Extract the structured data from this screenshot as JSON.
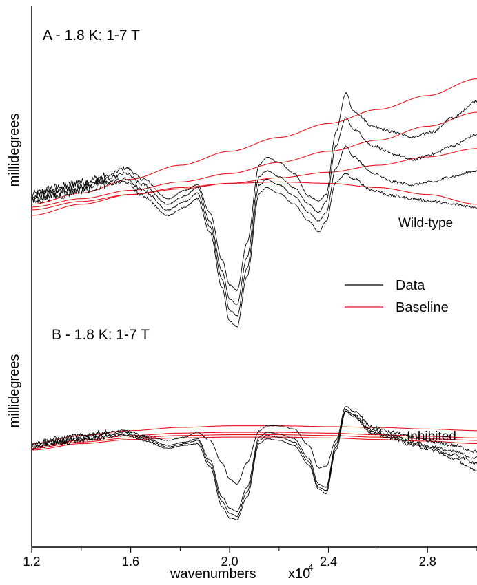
{
  "chart_data": {
    "type": "line",
    "xlabel": "wavenumbers",
    "x_multiplier_label": "x10",
    "x_multiplier_exponent": "4",
    "xlim": [
      1.2,
      3.0
    ],
    "xticks": [
      1.2,
      1.6,
      2.0,
      2.4,
      2.8
    ],
    "xtick_labels": [
      "1.2",
      "1.6",
      "2.0",
      "2.4",
      "2.8"
    ],
    "legend": {
      "position": "center-right",
      "entries": [
        {
          "label": "Data",
          "color": "#000000"
        },
        {
          "label": "Baseline",
          "color": "#e8141d"
        }
      ]
    },
    "panels": [
      {
        "title": "A - 1.8 K: 1-7 T",
        "ylabel": "millidegrees",
        "annotation": "Wild-type",
        "ylim": [
          -100,
          100
        ],
        "yticks": false,
        "data_series": [
          {
            "x": [
              1.2,
              1.3,
              1.4,
              1.5,
              1.58,
              1.65,
              1.75,
              1.82,
              1.87,
              1.92,
              1.97,
              2.0,
              2.03,
              2.07,
              2.12,
              2.15,
              2.2,
              2.26,
              2.32,
              2.36,
              2.39,
              2.43,
              2.47,
              2.5,
              2.58,
              2.66,
              2.74,
              2.82,
              2.9,
              3.0
            ],
            "y": [
              -5,
              0,
              4,
              8,
              14,
              6,
              -8,
              -2,
              2,
              -18,
              -52,
              -70,
              -74,
              -40,
              16,
              22,
              18,
              10,
              -6,
              -10,
              -5,
              40,
              68,
              55,
              44,
              40,
              36,
              40,
              50,
              62
            ]
          },
          {
            "x": [
              1.2,
              1.3,
              1.4,
              1.5,
              1.58,
              1.65,
              1.75,
              1.82,
              1.87,
              1.92,
              1.97,
              2.0,
              2.03,
              2.07,
              2.12,
              2.15,
              2.2,
              2.26,
              2.32,
              2.36,
              2.39,
              2.43,
              2.47,
              2.5,
              2.58,
              2.66,
              2.74,
              2.82,
              2.9,
              3.0
            ],
            "y": [
              -6,
              -2,
              2,
              6,
              10,
              2,
              -12,
              -6,
              0,
              -24,
              -60,
              -80,
              -84,
              -50,
              8,
              12,
              8,
              0,
              -12,
              -18,
              -10,
              30,
              50,
              42,
              30,
              24,
              20,
              24,
              30,
              38
            ]
          },
          {
            "x": [
              1.2,
              1.3,
              1.4,
              1.5,
              1.58,
              1.65,
              1.75,
              1.82,
              1.87,
              1.92,
              1.97,
              2.0,
              2.03,
              2.07,
              2.12,
              2.15,
              2.2,
              2.26,
              2.32,
              2.36,
              2.39,
              2.43,
              2.47,
              2.5,
              2.58,
              2.66,
              2.74,
              2.82,
              2.9,
              3.0
            ],
            "y": [
              -8,
              -4,
              0,
              4,
              6,
              -2,
              -16,
              -10,
              -4,
              -28,
              -66,
              -88,
              -92,
              -58,
              2,
              6,
              2,
              -6,
              -18,
              -24,
              -18,
              14,
              30,
              22,
              10,
              4,
              2,
              4,
              8,
              12
            ]
          },
          {
            "x": [
              1.2,
              1.3,
              1.4,
              1.5,
              1.58,
              1.65,
              1.75,
              1.82,
              1.87,
              1.92,
              1.97,
              2.0,
              2.03,
              2.07,
              2.12,
              2.15,
              2.2,
              2.26,
              2.32,
              2.36,
              2.39,
              2.43,
              2.47,
              2.5,
              2.58,
              2.66,
              2.74,
              2.82,
              2.9,
              3.0
            ],
            "y": [
              -10,
              -6,
              -2,
              2,
              4,
              -6,
              -20,
              -14,
              -8,
              -32,
              -72,
              -96,
              -100,
              -64,
              -4,
              0,
              -4,
              -12,
              -24,
              -32,
              -24,
              4,
              10,
              6,
              -2,
              -6,
              -8,
              -10,
              -12,
              -14
            ]
          }
        ],
        "baseline_series": [
          {
            "x": [
              1.2,
              1.4,
              1.6,
              1.8,
              2.0,
              2.2,
              2.4,
              2.6,
              2.8,
              3.0
            ],
            "y": [
              -12,
              -4,
              6,
              16,
              26,
              36,
              46,
              56,
              66,
              78
            ]
          },
          {
            "x": [
              1.2,
              1.4,
              1.6,
              1.8,
              2.0,
              2.2,
              2.4,
              2.6,
              2.8,
              3.0
            ],
            "y": [
              -14,
              -8,
              -2,
              4,
              10,
              18,
              26,
              34,
              44,
              54
            ]
          },
          {
            "x": [
              1.2,
              1.4,
              1.6,
              1.8,
              2.0,
              2.2,
              2.4,
              2.6,
              2.8,
              3.0
            ],
            "y": [
              -16,
              -10,
              -5,
              -1,
              3,
              7,
              11,
              16,
              22,
              28
            ]
          },
          {
            "x": [
              1.2,
              1.4,
              1.6,
              1.8,
              2.0,
              2.2,
              2.4,
              2.6,
              2.8,
              3.0
            ],
            "y": [
              -20,
              -12,
              -5,
              0,
              3,
              4,
              3,
              0,
              -5,
              -12
            ]
          }
        ]
      },
      {
        "title": "B - 1.8 K: 1-7 T",
        "ylabel": "millidegrees",
        "annotation": "Inhibited",
        "ylim": [
          -100,
          100
        ],
        "yticks": false,
        "data_series": [
          {
            "x": [
              1.2,
              1.3,
              1.4,
              1.5,
              1.58,
              1.65,
              1.75,
              1.82,
              1.87,
              1.92,
              1.97,
              2.0,
              2.03,
              2.07,
              2.12,
              2.15,
              2.2,
              2.26,
              2.32,
              2.36,
              2.39,
              2.43,
              2.47,
              2.5,
              2.58,
              2.66,
              2.74,
              2.82,
              2.9,
              3.0
            ],
            "y": [
              -6,
              0,
              4,
              8,
              10,
              4,
              -2,
              2,
              8,
              -2,
              -30,
              -50,
              -56,
              -30,
              10,
              16,
              16,
              12,
              -8,
              -36,
              -34,
              -2,
              40,
              34,
              14,
              8,
              2,
              -4,
              -8,
              -16
            ]
          },
          {
            "x": [
              1.2,
              1.3,
              1.4,
              1.5,
              1.58,
              1.65,
              1.75,
              1.82,
              1.87,
              1.92,
              1.97,
              2.0,
              2.03,
              2.07,
              2.12,
              2.15,
              2.2,
              2.26,
              2.32,
              2.36,
              2.39,
              2.43,
              2.47,
              2.5,
              2.58,
              2.66,
              2.74,
              2.82,
              2.9,
              3.0
            ],
            "y": [
              -8,
              -2,
              2,
              6,
              8,
              2,
              -8,
              -4,
              0,
              -26,
              -72,
              -86,
              -90,
              -60,
              2,
              8,
              6,
              0,
              -24,
              -56,
              -60,
              -6,
              36,
              30,
              10,
              4,
              -4,
              -10,
              -16,
              -24
            ]
          },
          {
            "x": [
              1.2,
              1.3,
              1.4,
              1.5,
              1.58,
              1.65,
              1.75,
              1.82,
              1.87,
              1.92,
              1.97,
              2.0,
              2.03,
              2.07,
              2.12,
              2.15,
              2.2,
              2.26,
              2.32,
              2.36,
              2.39,
              2.43,
              2.47,
              2.5,
              2.58,
              2.66,
              2.74,
              2.82,
              2.9,
              3.0
            ],
            "y": [
              -10,
              -4,
              0,
              4,
              6,
              0,
              -10,
              -6,
              -2,
              -30,
              -78,
              -92,
              -96,
              -66,
              -2,
              4,
              2,
              -4,
              -28,
              -60,
              -64,
              -10,
              34,
              28,
              8,
              2,
              -6,
              -12,
              -20,
              -30
            ]
          },
          {
            "x": [
              1.2,
              1.3,
              1.4,
              1.5,
              1.58,
              1.65,
              1.75,
              1.82,
              1.87,
              1.92,
              1.97,
              2.0,
              2.03,
              2.07,
              2.12,
              2.15,
              2.2,
              2.26,
              2.32,
              2.36,
              2.39,
              2.43,
              2.47,
              2.5,
              2.58,
              2.66,
              2.74,
              2.82,
              2.9,
              3.0
            ],
            "y": [
              -12,
              -6,
              -2,
              2,
              4,
              -2,
              -12,
              -8,
              -6,
              -34,
              -84,
              -98,
              -100,
              -72,
              -6,
              0,
              -2,
              -8,
              -32,
              -62,
              -68,
              -14,
              34,
              28,
              6,
              0,
              -8,
              -14,
              -24,
              -40
            ]
          }
        ],
        "baseline_series": [
          {
            "x": [
              1.2,
              1.4,
              1.6,
              1.8,
              2.0,
              2.2,
              2.4,
              2.6,
              2.8,
              3.0
            ],
            "y": [
              -6,
              4,
              10,
              14,
              16,
              16,
              15,
              14,
              12,
              10
            ]
          },
          {
            "x": [
              1.2,
              1.4,
              1.6,
              1.8,
              2.0,
              2.2,
              2.4,
              2.6,
              2.8,
              3.0
            ],
            "y": [
              -10,
              -2,
              4,
              7,
              8,
              8,
              7,
              5,
              3,
              1
            ]
          },
          {
            "x": [
              1.2,
              1.4,
              1.6,
              1.8,
              2.0,
              2.2,
              2.4,
              2.6,
              2.8,
              3.0
            ],
            "y": [
              -12,
              -4,
              1,
              4,
              5,
              5,
              4,
              2,
              0,
              -2
            ]
          },
          {
            "x": [
              1.2,
              1.4,
              1.6,
              1.8,
              2.0,
              2.2,
              2.4,
              2.6,
              2.8,
              3.0
            ],
            "y": [
              -14,
              -6,
              -1,
              1,
              2,
              2,
              1,
              -1,
              -3,
              -6
            ]
          }
        ]
      }
    ]
  }
}
